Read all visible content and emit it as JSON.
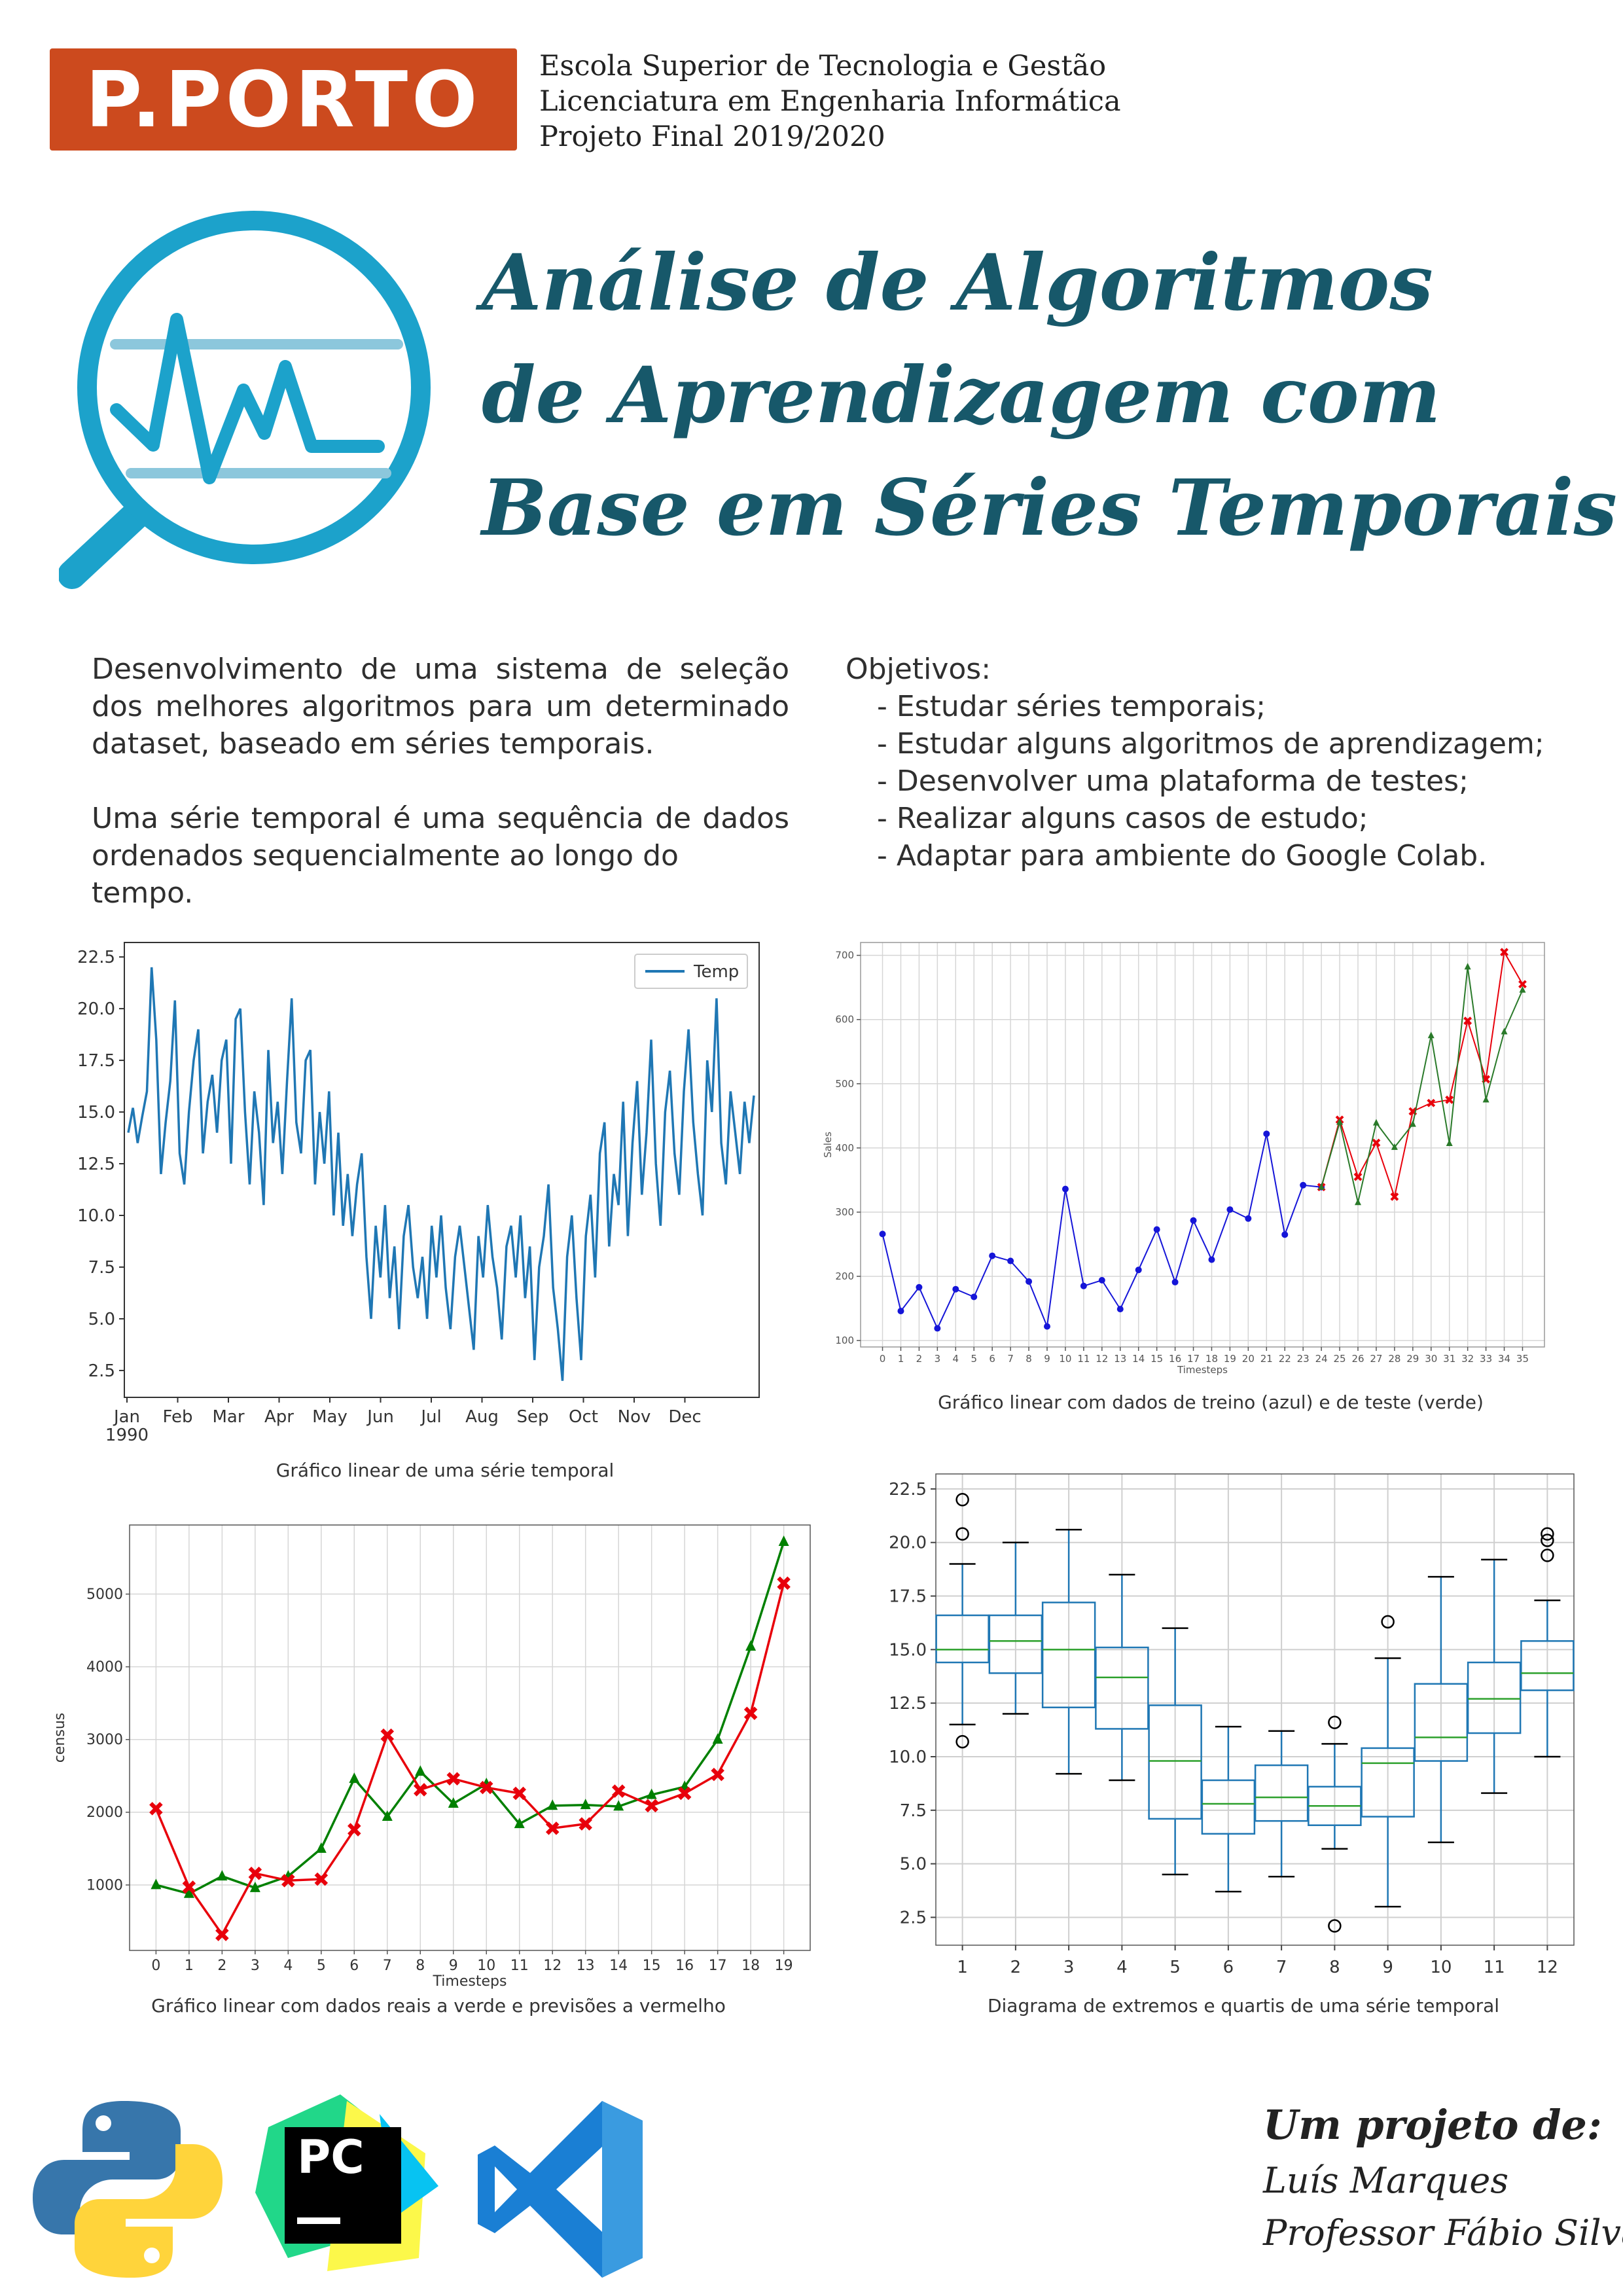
{
  "header": {
    "logo_text": "P.PORTO",
    "school": "Escola Superior de Tecnologia e Gestão",
    "degree": "Licenciatura em Engenharia Informática",
    "project": "Projeto Final 2019/2020"
  },
  "title": {
    "line1": "Análise de Algoritmos",
    "line2": "de Aprendizagem com",
    "line3": "Base em Séries Temporais"
  },
  "intro": {
    "p1_l1": "Desenvolvimento de uma sistema de seleção",
    "p1_l2": "dos melhores algoritmos para um determinado",
    "p1_l3": "dataset, baseado em séries temporais.",
    "p2_l1": "Uma série temporal é uma sequência de dados",
    "p2_l2": "ordenados sequencialmente ao longo do tempo."
  },
  "objectives": {
    "heading": "Objetivos:",
    "items": [
      "- Estudar séries temporais;",
      "- Estudar alguns algoritmos de aprendizagem;",
      "- Desenvolver uma plataforma de testes;",
      "- Realizar alguns casos de estudo;",
      "- Adaptar para ambiente do Google Colab."
    ]
  },
  "captions": {
    "chart1": "Gráfico linear de uma série temporal",
    "chart2": "Gráfico linear com dados de treino (azul) e de teste (verde)",
    "chart3": "Gráfico linear com dados reais a verde e previsões a vermelho",
    "chart4": "Diagrama de extremos e quartis de uma série temporal"
  },
  "footer": {
    "heading": "Um projeto de:",
    "author": "Luís Marques",
    "supervisor": "Professor Fábio Silva"
  },
  "icons": [
    "magnifier-chart-icon",
    "python-logo-icon",
    "pycharm-logo-icon",
    "vscode-logo-icon"
  ],
  "colors": {
    "brand": "#cc4a1e",
    "title": "#17586a",
    "icon_blue": "#1ca2cb",
    "line_blue": "#1f77b4",
    "green": "#008000",
    "red": "#e8000b"
  },
  "chart_data": [
    {
      "type": "line",
      "series": [
        {
          "name": "Temp",
          "values": [
            14.0,
            15.2,
            13.5,
            14.8,
            16.0,
            22.0,
            18.5,
            12.0,
            14.5,
            16.5,
            20.4,
            13.0,
            11.5,
            15.0,
            17.5,
            19.0,
            13.0,
            15.5,
            16.8,
            14.0,
            17.5,
            18.5,
            12.5,
            19.5,
            20.0,
            15.0,
            11.5,
            16.0,
            14.0,
            10.5,
            18.0,
            13.5,
            15.5,
            12.0,
            16.5,
            20.5,
            14.5,
            13.0,
            17.5,
            18.0,
            11.5,
            15.0,
            12.5,
            16.0,
            10.0,
            14.0,
            9.5,
            12.0,
            9.0,
            11.5,
            13.0,
            8.0,
            5.0,
            9.5,
            7.0,
            10.5,
            6.0,
            8.5,
            4.5,
            9.0,
            10.5,
            7.5,
            6.0,
            8.0,
            5.0,
            9.5,
            7.0,
            10.0,
            6.5,
            4.5,
            8.0,
            9.5,
            7.5,
            5.5,
            3.5,
            9.0,
            7.0,
            10.5,
            8.0,
            6.5,
            4.0,
            8.5,
            9.5,
            7.0,
            10.0,
            6.0,
            8.5,
            3.0,
            7.5,
            9.0,
            11.5,
            6.5,
            4.5,
            2.0,
            8.0,
            10.0,
            6.0,
            3.0,
            9.0,
            11.0,
            7.0,
            13.0,
            14.5,
            8.5,
            12.0,
            10.5,
            15.5,
            9.0,
            13.5,
            16.5,
            11.0,
            14.0,
            18.5,
            12.5,
            9.5,
            15.0,
            17.0,
            13.0,
            11.0,
            16.0,
            19.0,
            14.5,
            12.0,
            10.0,
            17.5,
            15.0,
            20.5,
            13.5,
            11.5,
            16.0,
            14.0,
            12.0,
            15.5,
            13.5,
            15.8
          ]
        }
      ],
      "x_tick_labels": [
        "Jan\n1990",
        "Feb",
        "Mar",
        "Apr",
        "May",
        "Jun",
        "Jul",
        "Aug",
        "Sep",
        "Oct",
        "Nov",
        "Dec"
      ],
      "y_tick_labels": [
        "2.5",
        "5.0",
        "7.5",
        "10.0",
        "12.5",
        "15.0",
        "17.5",
        "20.0",
        "22.5"
      ],
      "ylim": [
        1.2,
        23.2
      ],
      "legend": "top-right",
      "grid": false
    },
    {
      "type": "line",
      "xlabel": "Timesteps",
      "ylabel": "Sales",
      "x": [
        0,
        1,
        2,
        3,
        4,
        5,
        6,
        7,
        8,
        9,
        10,
        11,
        12,
        13,
        14,
        15,
        16,
        17,
        18,
        19,
        20,
        21,
        22,
        23,
        24,
        25,
        26,
        27,
        28,
        29,
        30,
        31,
        32,
        33,
        34,
        35
      ],
      "series": [
        {
          "values": [
            266,
            146,
            183,
            119,
            180,
            168,
            232,
            224,
            192,
            122,
            336,
            185,
            194,
            149,
            210,
            273,
            191,
            287,
            226,
            304,
            290,
            422,
            265,
            342,
            339,
            440,
            315,
            439,
            401,
            437,
            575,
            407,
            682,
            475,
            581,
            646
          ]
        },
        {
          "values": [
            null,
            null,
            null,
            null,
            null,
            null,
            null,
            null,
            null,
            null,
            null,
            null,
            null,
            null,
            null,
            null,
            null,
            null,
            null,
            null,
            null,
            null,
            null,
            null,
            339,
            444,
            355,
            408,
            324,
            457,
            470,
            475,
            598,
            507,
            705,
            655
          ]
        }
      ],
      "y_tick_labels": [
        "100",
        "200",
        "300",
        "400",
        "500",
        "600",
        "700"
      ],
      "ylim": [
        90,
        720
      ],
      "grid": true
    },
    {
      "type": "line",
      "xlabel": "Timesteps",
      "ylabel": "census",
      "x": [
        0,
        1,
        2,
        3,
        4,
        5,
        6,
        7,
        8,
        9,
        10,
        11,
        12,
        13,
        14,
        15,
        16,
        17,
        18,
        19
      ],
      "series": [
        {
          "values": [
            1000,
            880,
            1120,
            960,
            1120,
            1500,
            2460,
            1940,
            2560,
            2120,
            2390,
            1840,
            2090,
            2100,
            2080,
            2240,
            2350,
            3000,
            4280,
            5720
          ]
        },
        {
          "values": [
            2050,
            970,
            320,
            1160,
            1060,
            1080,
            1760,
            3060,
            2310,
            2460,
            2340,
            2260,
            1780,
            1840,
            2290,
            2090,
            2260,
            2520,
            3360,
            5150
          ]
        }
      ],
      "y_tick_labels": [
        "1000",
        "2000",
        "3000",
        "4000",
        "5000"
      ],
      "ylim": [
        100,
        5950
      ],
      "grid": true
    },
    {
      "type": "box",
      "categories": [
        "1",
        "2",
        "3",
        "4",
        "5",
        "6",
        "7",
        "8",
        "9",
        "10",
        "11",
        "12"
      ],
      "boxes": [
        {
          "whislo": 11.5,
          "q1": 14.4,
          "med": 15.0,
          "q3": 16.6,
          "whishi": 19.0,
          "fliers": [
            10.7,
            20.4,
            22.0
          ]
        },
        {
          "whislo": 12.0,
          "q1": 13.9,
          "med": 15.4,
          "q3": 16.6,
          "whishi": 20.0,
          "fliers": []
        },
        {
          "whislo": 9.2,
          "q1": 12.3,
          "med": 15.0,
          "q3": 17.2,
          "whishi": 20.6,
          "fliers": []
        },
        {
          "whislo": 8.9,
          "q1": 11.3,
          "med": 13.7,
          "q3": 15.1,
          "whishi": 18.5,
          "fliers": []
        },
        {
          "whislo": 4.5,
          "q1": 7.1,
          "med": 9.8,
          "q3": 12.4,
          "whishi": 16.0,
          "fliers": []
        },
        {
          "whislo": 3.7,
          "q1": 6.4,
          "med": 7.8,
          "q3": 8.9,
          "whishi": 11.4,
          "fliers": []
        },
        {
          "whislo": 4.4,
          "q1": 7.0,
          "med": 8.1,
          "q3": 9.6,
          "whishi": 11.2,
          "fliers": []
        },
        {
          "whislo": 5.7,
          "q1": 6.8,
          "med": 7.7,
          "q3": 8.6,
          "whishi": 10.6,
          "fliers": [
            11.6,
            2.1
          ]
        },
        {
          "whislo": 3.0,
          "q1": 7.2,
          "med": 9.7,
          "q3": 10.4,
          "whishi": 14.6,
          "fliers": [
            16.3
          ]
        },
        {
          "whislo": 6.0,
          "q1": 9.8,
          "med": 10.9,
          "q3": 13.4,
          "whishi": 18.4,
          "fliers": []
        },
        {
          "whislo": 8.3,
          "q1": 11.1,
          "med": 12.7,
          "q3": 14.4,
          "whishi": 19.2,
          "fliers": []
        },
        {
          "whislo": 10.0,
          "q1": 13.1,
          "med": 13.9,
          "q3": 15.4,
          "whishi": 17.3,
          "fliers": [
            19.4,
            20.1,
            20.4
          ]
        }
      ],
      "y_tick_labels": [
        "2.5",
        "5.0",
        "7.5",
        "10.0",
        "12.5",
        "15.0",
        "17.5",
        "20.0",
        "22.5"
      ],
      "ylim": [
        1.2,
        23.2
      ],
      "grid": true
    }
  ]
}
